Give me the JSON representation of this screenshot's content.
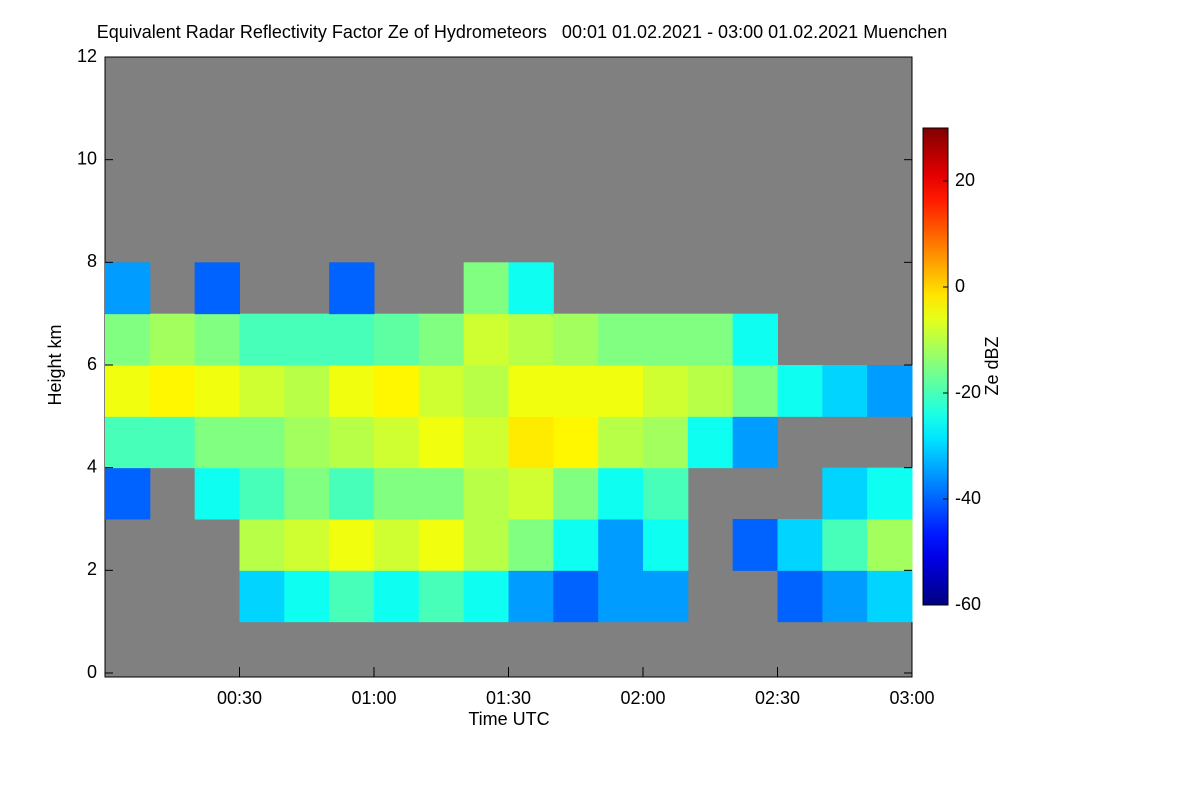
{
  "chart_data": {
    "type": "heatmap",
    "title": "Equivalent Radar Reflectivity Factor Ze of Hydrometeors   00:01 01.02.2021 - 03:00 01.02.2021 Muenchen",
    "x_label": "Time UTC",
    "y_label": "Height km",
    "colorbar_label": "Ze dBZ",
    "x": [
      0,
      10,
      20,
      30,
      40,
      50,
      60,
      70,
      80,
      90,
      100,
      110,
      120,
      130,
      140,
      150,
      160,
      170,
      180
    ],
    "y": [
      0,
      1,
      2,
      3,
      4,
      5,
      6,
      7,
      8,
      9,
      10,
      11,
      12
    ],
    "z": [
      [
        null,
        null,
        null,
        null,
        null,
        null,
        null,
        null,
        null,
        null,
        null,
        null,
        null,
        null,
        null,
        null,
        null,
        null
      ],
      [
        null,
        null,
        null,
        -30,
        -25,
        -20,
        -25,
        -20,
        -25,
        -35,
        -40,
        -35,
        -35,
        null,
        null,
        -40,
        -35,
        -30
      ],
      [
        null,
        null,
        null,
        -10,
        -8,
        -5,
        -8,
        -5,
        -10,
        -15,
        -25,
        -35,
        -25,
        null,
        -40,
        -30,
        -20,
        -12
      ],
      [
        -40,
        null,
        -25,
        -20,
        -15,
        -20,
        -15,
        -15,
        -10,
        -8,
        -15,
        -25,
        -20,
        null,
        null,
        null,
        -30,
        -25
      ],
      [
        -20,
        -20,
        -15,
        -15,
        -12,
        -10,
        -8,
        -5,
        -8,
        -2,
        -3,
        -10,
        -12,
        -25,
        -35,
        null,
        null,
        null
      ],
      [
        -5,
        -3,
        -5,
        -8,
        -10,
        -5,
        -3,
        -8,
        -10,
        -5,
        -5,
        -5,
        -8,
        -10,
        -15,
        -25,
        -30,
        -35
      ],
      [
        -15,
        -12,
        -15,
        -20,
        -20,
        -20,
        -18,
        -15,
        -8,
        -10,
        -12,
        -15,
        -15,
        -15,
        -25,
        null,
        null,
        null
      ],
      [
        -35,
        null,
        -40,
        null,
        null,
        -40,
        null,
        null,
        -15,
        -25,
        null,
        null,
        null,
        null,
        null,
        null,
        null,
        null
      ],
      [
        null,
        null,
        null,
        null,
        null,
        null,
        null,
        null,
        null,
        null,
        null,
        null,
        null,
        null,
        null,
        null,
        null,
        null
      ],
      [
        null,
        null,
        null,
        null,
        null,
        null,
        null,
        null,
        null,
        null,
        null,
        null,
        null,
        null,
        null,
        null,
        null,
        null
      ],
      [
        null,
        null,
        null,
        null,
        null,
        null,
        null,
        null,
        null,
        null,
        null,
        null,
        null,
        null,
        null,
        null,
        null,
        null
      ],
      [
        null,
        null,
        null,
        null,
        null,
        null,
        null,
        null,
        null,
        null,
        null,
        null,
        null,
        null,
        null,
        null,
        null,
        null
      ]
    ],
    "background": "#808080",
    "xlim": [
      0,
      180
    ],
    "xticks": [
      {
        "value": 30,
        "label": "00:30"
      },
      {
        "value": 60,
        "label": "01:00"
      },
      {
        "value": 90,
        "label": "01:30"
      },
      {
        "value": 120,
        "label": "02:00"
      },
      {
        "value": 150,
        "label": "02:30"
      },
      {
        "value": 180,
        "label": "03:00"
      }
    ],
    "ylim": [
      0,
      12
    ],
    "yticks": [
      0,
      2,
      4,
      6,
      8,
      10,
      12
    ],
    "clim": [
      -60,
      30
    ],
    "cticks": [
      -60,
      -40,
      -20,
      0,
      20
    ],
    "colormap": "jet"
  }
}
